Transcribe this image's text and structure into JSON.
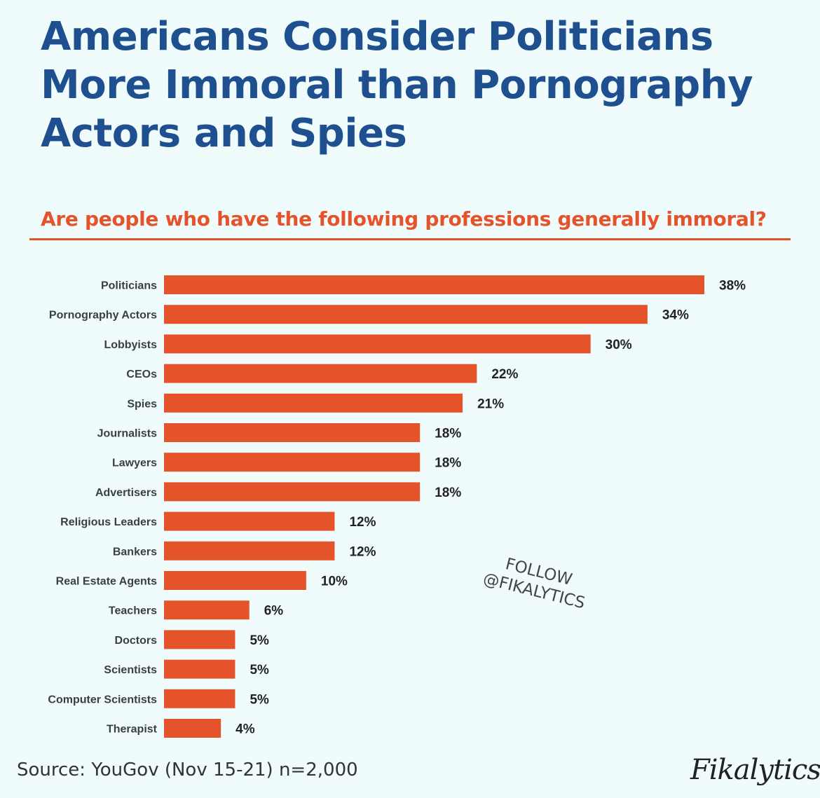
{
  "chart_data": {
    "type": "bar",
    "orientation": "horizontal",
    "title": "Americans Consider Politicians More Immoral than Pornography Actors and Spies",
    "subtitle": "Are people who have the following professions generally immoral?",
    "categories": [
      "Politicians",
      "Pornography Actors",
      "Lobbyists",
      "CEOs",
      "Spies",
      "Journalists",
      "Lawyers",
      "Advertisers",
      "Religious Leaders",
      "Bankers",
      "Real Estate Agents",
      "Teachers",
      "Doctors",
      "Scientists",
      "Computer Scientists",
      "Therapist"
    ],
    "values": [
      38,
      34,
      30,
      22,
      21,
      18,
      18,
      18,
      12,
      12,
      10,
      6,
      5,
      5,
      5,
      4
    ],
    "value_labels": [
      "38%",
      "34%",
      "30%",
      "22%",
      "21%",
      "18%",
      "18%",
      "18%",
      "12%",
      "12%",
      "10%",
      "6%",
      "5%",
      "5%",
      "5%",
      "4%"
    ],
    "unit": "%",
    "xlim": [
      0,
      38
    ],
    "grid": false,
    "bar_color": "#e5532b"
  },
  "source": "Source: YouGov (Nov 15-21) n=2,000",
  "watermark": {
    "line1": "FOLLOW",
    "line2": "@FIKALYTICS"
  },
  "logo": "Fikalytics",
  "colors": {
    "title": "#1e4f8f",
    "accent": "#e5532b",
    "background": "#f0fbfc"
  }
}
